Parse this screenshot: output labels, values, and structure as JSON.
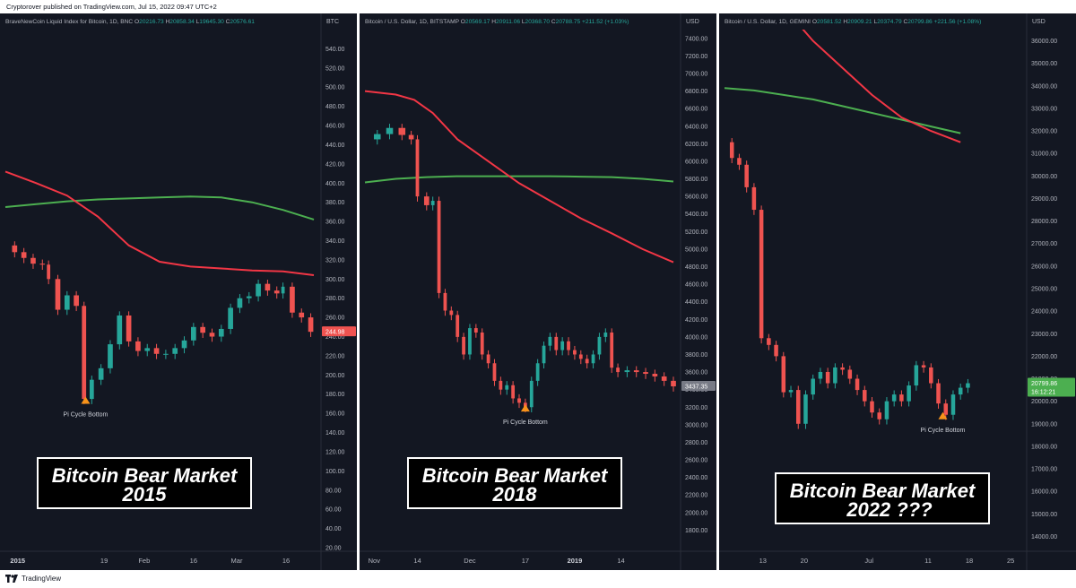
{
  "header": {
    "text": "Cryptorover published on TradingView.com, Jul 15, 2022 09:47 UTC+2"
  },
  "footer": {
    "brand": "TradingView"
  },
  "colors": {
    "bg": "#131722",
    "grid": "#1e222d",
    "up": "#26a69a",
    "down": "#ef5350",
    "ma_red": "#f23645",
    "ma_green": "#4caf50",
    "text": "#b2b5be",
    "marker": "#f7931a"
  },
  "chart_data": [
    {
      "type": "candlestick",
      "legend": {
        "symbol": "BraveNewCoin Liquid Index for Bitcoin, 1D, BNC",
        "O": "20216.73",
        "H": "20858.34",
        "L": "19645.30",
        "C": "20576.61"
      },
      "currency": "BTC",
      "ylim": [
        20,
        560
      ],
      "yticks": [
        "540.00",
        "520.00",
        "500.00",
        "480.00",
        "460.00",
        "440.00",
        "420.00",
        "400.00",
        "380.00",
        "360.00",
        "340.00",
        "320.00",
        "300.00",
        "280.00",
        "260.00",
        "240.00",
        "220.00",
        "200.00",
        "180.00",
        "160.00",
        "140.00",
        "120.00",
        "100.00",
        "80.00",
        "60.00",
        "40.00",
        "20.00"
      ],
      "xticks": [
        {
          "label": "2015",
          "bold": true,
          "pos": 0.04
        },
        {
          "label": "19",
          "pos": 0.32
        },
        {
          "label": "Feb",
          "pos": 0.45
        },
        {
          "label": "16",
          "pos": 0.61
        },
        {
          "label": "Mar",
          "pos": 0.75
        },
        {
          "label": "16",
          "pos": 0.91
        }
      ],
      "price_label": "244.98",
      "price_color": "#ef5350",
      "annotation": {
        "text": "Pi Cycle Bottom",
        "x": 0.26,
        "price": 170
      },
      "title_lines": [
        "Bitcoin Bear Market",
        "2015"
      ],
      "close": [
        [
          0,
          335
        ],
        [
          0.03,
          328
        ],
        [
          0.06,
          322
        ],
        [
          0.09,
          316
        ],
        [
          0.12,
          315
        ],
        [
          0.14,
          300
        ],
        [
          0.17,
          268
        ],
        [
          0.2,
          283
        ],
        [
          0.23,
          272
        ],
        [
          0.255,
          175
        ],
        [
          0.28,
          195
        ],
        [
          0.31,
          207
        ],
        [
          0.34,
          232
        ],
        [
          0.37,
          262
        ],
        [
          0.4,
          235
        ],
        [
          0.43,
          225
        ],
        [
          0.46,
          228
        ],
        [
          0.49,
          222
        ],
        [
          0.52,
          222
        ],
        [
          0.55,
          228
        ],
        [
          0.58,
          236
        ],
        [
          0.61,
          250
        ],
        [
          0.64,
          244
        ],
        [
          0.67,
          240
        ],
        [
          0.7,
          248
        ],
        [
          0.73,
          270
        ],
        [
          0.76,
          280
        ],
        [
          0.79,
          282
        ],
        [
          0.82,
          295
        ],
        [
          0.85,
          288
        ],
        [
          0.88,
          285
        ],
        [
          0.9,
          292
        ],
        [
          0.93,
          265
        ],
        [
          0.96,
          260
        ],
        [
          0.99,
          245
        ]
      ],
      "ma_red": [
        [
          0,
          412
        ],
        [
          0.1,
          400
        ],
        [
          0.2,
          387
        ],
        [
          0.3,
          365
        ],
        [
          0.4,
          335
        ],
        [
          0.5,
          318
        ],
        [
          0.6,
          313
        ],
        [
          0.7,
          311
        ],
        [
          0.8,
          309
        ],
        [
          0.9,
          308
        ],
        [
          1,
          304
        ]
      ],
      "ma_green": [
        [
          0,
          375
        ],
        [
          0.1,
          378
        ],
        [
          0.2,
          381
        ],
        [
          0.3,
          383
        ],
        [
          0.4,
          384
        ],
        [
          0.5,
          385
        ],
        [
          0.6,
          386
        ],
        [
          0.7,
          385
        ],
        [
          0.8,
          380
        ],
        [
          0.9,
          372
        ],
        [
          1,
          362
        ]
      ]
    },
    {
      "type": "candlestick",
      "legend": {
        "symbol": "Bitcoin / U.S. Dollar, 1D, BITSTAMP",
        "O": "20569.17",
        "H": "20911.06",
        "L": "20368.70",
        "C": "20788.75",
        "chg": "+211.52 (+1.03%)"
      },
      "currency": "USD",
      "ylim": [
        1600,
        7500
      ],
      "yticks": [
        "7400.00",
        "7200.00",
        "7000.00",
        "6800.00",
        "6600.00",
        "6400.00",
        "6200.00",
        "6000.00",
        "5800.00",
        "5600.00",
        "5400.00",
        "5200.00",
        "5000.00",
        "4800.00",
        "4600.00",
        "4400.00",
        "4200.00",
        "4000.00",
        "3800.00",
        "3600.00",
        "3400.00",
        "3200.00",
        "3000.00",
        "2800.00",
        "2600.00",
        "2400.00",
        "2200.00",
        "2000.00",
        "1800.00"
      ],
      "xticks": [
        {
          "label": "Nov",
          "pos": 0.03
        },
        {
          "label": "14",
          "pos": 0.17
        },
        {
          "label": "Dec",
          "pos": 0.34
        },
        {
          "label": "17",
          "pos": 0.52
        },
        {
          "label": "2019",
          "bold": true,
          "pos": 0.68
        },
        {
          "label": "14",
          "pos": 0.83
        }
      ],
      "price_label": "3437.35",
      "price_color": "#787b86",
      "annotation": {
        "text": "Pi Cycle Bottom",
        "x": 0.52,
        "price": 3150
      },
      "title_lines": [
        "Bitcoin Bear Market",
        "2018"
      ],
      "close": [
        [
          0,
          6250
        ],
        [
          0.04,
          6310
        ],
        [
          0.08,
          6380
        ],
        [
          0.12,
          6300
        ],
        [
          0.15,
          6250
        ],
        [
          0.17,
          5600
        ],
        [
          0.2,
          5500
        ],
        [
          0.22,
          5550
        ],
        [
          0.24,
          4500
        ],
        [
          0.26,
          4300
        ],
        [
          0.28,
          4250
        ],
        [
          0.3,
          4000
        ],
        [
          0.32,
          3800
        ],
        [
          0.34,
          4100
        ],
        [
          0.36,
          4050
        ],
        [
          0.38,
          3800
        ],
        [
          0.4,
          3700
        ],
        [
          0.42,
          3500
        ],
        [
          0.44,
          3400
        ],
        [
          0.46,
          3450
        ],
        [
          0.48,
          3300
        ],
        [
          0.5,
          3250
        ],
        [
          0.52,
          3200
        ],
        [
          0.54,
          3500
        ],
        [
          0.56,
          3700
        ],
        [
          0.58,
          3900
        ],
        [
          0.6,
          4000
        ],
        [
          0.62,
          3850
        ],
        [
          0.64,
          3950
        ],
        [
          0.66,
          3850
        ],
        [
          0.68,
          3800
        ],
        [
          0.7,
          3750
        ],
        [
          0.72,
          3700
        ],
        [
          0.74,
          3800
        ],
        [
          0.76,
          4000
        ],
        [
          0.78,
          4050
        ],
        [
          0.8,
          3650
        ],
        [
          0.82,
          3600
        ],
        [
          0.85,
          3620
        ],
        [
          0.88,
          3600
        ],
        [
          0.91,
          3580
        ],
        [
          0.94,
          3550
        ],
        [
          0.97,
          3500
        ],
        [
          1,
          3437
        ]
      ],
      "ma_red": [
        [
          0,
          6800
        ],
        [
          0.1,
          6760
        ],
        [
          0.16,
          6700
        ],
        [
          0.22,
          6550
        ],
        [
          0.3,
          6250
        ],
        [
          0.4,
          6000
        ],
        [
          0.5,
          5750
        ],
        [
          0.6,
          5550
        ],
        [
          0.7,
          5350
        ],
        [
          0.8,
          5180
        ],
        [
          0.9,
          5000
        ],
        [
          1,
          4850
        ]
      ],
      "ma_green": [
        [
          0,
          5760
        ],
        [
          0.1,
          5800
        ],
        [
          0.2,
          5820
        ],
        [
          0.3,
          5830
        ],
        [
          0.4,
          5830
        ],
        [
          0.5,
          5830
        ],
        [
          0.6,
          5830
        ],
        [
          0.7,
          5825
        ],
        [
          0.8,
          5820
        ],
        [
          0.9,
          5800
        ],
        [
          1,
          5770
        ]
      ]
    },
    {
      "type": "candlestick",
      "legend": {
        "symbol": "Bitcoin / U.S. Dollar, 1D, GEMINI",
        "O": "20581.52",
        "H": "20909.21",
        "L": "20374.79",
        "C": "20799.86",
        "chg": "+221.56 (+1.08%)"
      },
      "currency": "USD",
      "ylim": [
        13500,
        36500
      ],
      "yticks": [
        "36000.00",
        "35000.00",
        "34000.00",
        "33000.00",
        "32000.00",
        "31000.00",
        "30000.00",
        "29000.00",
        "28000.00",
        "27000.00",
        "26000.00",
        "25000.00",
        "24000.00",
        "23000.00",
        "22000.00",
        "21000.00",
        "20000.00",
        "19000.00",
        "18000.00",
        "17000.00",
        "16000.00",
        "15000.00",
        "14000.00"
      ],
      "xticks": [
        {
          "label": "13",
          "pos": 0.13
        },
        {
          "label": "20",
          "pos": 0.27
        },
        {
          "label": "Jul",
          "pos": 0.49
        },
        {
          "label": "11",
          "pos": 0.69
        },
        {
          "label": "18",
          "pos": 0.83
        },
        {
          "label": "25",
          "pos": 0.97
        }
      ],
      "price_label": "20799.86",
      "time_label": "16:12:21",
      "price_color": "#4caf50",
      "annotation": {
        "text": "Pi Cycle Bottom",
        "x": 0.74,
        "price": 19200
      },
      "title_lines": [
        "Bitcoin Bear Market",
        "2022 ???"
      ],
      "close": [
        [
          0,
          31500
        ],
        [
          0.025,
          30800
        ],
        [
          0.05,
          30500
        ],
        [
          0.075,
          29500
        ],
        [
          0.1,
          28500
        ],
        [
          0.125,
          22800
        ],
        [
          0.15,
          22500
        ],
        [
          0.175,
          22000
        ],
        [
          0.2,
          20400
        ],
        [
          0.225,
          20500
        ],
        [
          0.25,
          19000
        ],
        [
          0.275,
          20300
        ],
        [
          0.3,
          21000
        ],
        [
          0.325,
          21300
        ],
        [
          0.35,
          20800
        ],
        [
          0.375,
          21500
        ],
        [
          0.4,
          21400
        ],
        [
          0.425,
          21000
        ],
        [
          0.45,
          20500
        ],
        [
          0.475,
          20000
        ],
        [
          0.5,
          19500
        ],
        [
          0.525,
          19200
        ],
        [
          0.55,
          20000
        ],
        [
          0.575,
          20300
        ],
        [
          0.6,
          20000
        ],
        [
          0.625,
          20700
        ],
        [
          0.65,
          21600
        ],
        [
          0.675,
          21500
        ],
        [
          0.7,
          20800
        ],
        [
          0.725,
          19900
        ],
        [
          0.75,
          19400
        ],
        [
          0.775,
          20300
        ],
        [
          0.8,
          20600
        ],
        [
          0.825,
          20800
        ]
      ],
      "ma_red": [
        [
          0.2,
          37500
        ],
        [
          0.3,
          36000
        ],
        [
          0.4,
          34800
        ],
        [
          0.5,
          33600
        ],
        [
          0.6,
          32600
        ],
        [
          0.7,
          32000
        ],
        [
          0.8,
          31500
        ]
      ],
      "ma_green": [
        [
          0,
          33900
        ],
        [
          0.1,
          33800
        ],
        [
          0.2,
          33600
        ],
        [
          0.3,
          33400
        ],
        [
          0.4,
          33100
        ],
        [
          0.5,
          32800
        ],
        [
          0.6,
          32500
        ],
        [
          0.7,
          32200
        ],
        [
          0.8,
          31900
        ]
      ]
    }
  ]
}
